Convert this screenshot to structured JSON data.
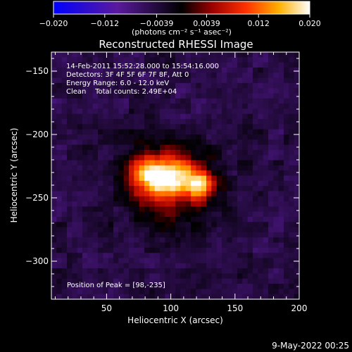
{
  "chart_data": {
    "type": "heatmap",
    "title": "Reconstructed RHESSI Image",
    "xlabel": "Heliocentric X (arcsec)",
    "ylabel": "Heliocentric Y (arcsec)",
    "xlim": [
      7,
      200
    ],
    "ylim": [
      -330,
      -135
    ],
    "xticks": [
      50,
      100,
      150,
      200
    ],
    "yticks": [
      -150,
      -200,
      -250,
      -300
    ],
    "colorbar": {
      "min": -0.02,
      "max": 0.02,
      "ticks": [
        {
          "value": -0.02,
          "label": "−0.020"
        },
        {
          "value": -0.012,
          "label": "−0.012"
        },
        {
          "value": -0.0039,
          "label": "−0.0039"
        },
        {
          "value": 0.0039,
          "label": "0.0039"
        },
        {
          "value": 0.012,
          "label": "0.012"
        },
        {
          "value": 0.02,
          "label": "0.020"
        }
      ],
      "unit_label": "(photons cm⁻² s⁻¹ asec⁻²)"
    },
    "annotations": [
      "14-Feb-2011 15:52:28.000 to 15:54:16.000",
      "Detectors: 3F 4F 5F 6F 7F 8F, Att 0",
      "Energy Range: 6.0 - 12.0 keV",
      "Clean    Total counts: 2.49E+04"
    ],
    "peak_label": "Position of Peak = [98,-235]",
    "peak": [
      98,
      -235
    ],
    "sources": [
      {
        "x": 97,
        "y": -235,
        "sx": 17,
        "sy": 11,
        "amp": 0.0195
      },
      {
        "x": 124,
        "y": -240,
        "sx": 8,
        "sy": 7,
        "amp": 0.0135
      },
      {
        "x": 80,
        "y": -229,
        "sx": 9,
        "sy": 8,
        "amp": 0.008
      },
      {
        "x": 102,
        "y": -255,
        "sx": 26,
        "sy": 22,
        "amp": 0.0055
      },
      {
        "x": 98,
        "y": -222,
        "sx": 28,
        "sy": 16,
        "amp": 0.0045
      }
    ],
    "background": -0.0045
  },
  "footer": {
    "date": "9-May-2022 00:25"
  }
}
